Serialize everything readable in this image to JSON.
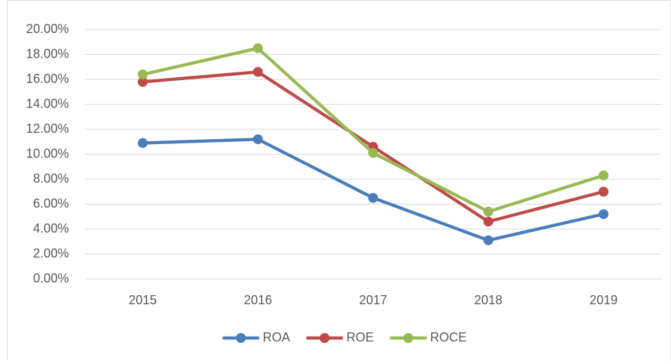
{
  "chart_data": {
    "type": "line",
    "categories": [
      "2015",
      "2016",
      "2017",
      "2018",
      "2019"
    ],
    "series": [
      {
        "name": "ROA",
        "color": "#4a7ebb",
        "values": [
          10.9,
          11.2,
          6.5,
          3.1,
          5.2
        ]
      },
      {
        "name": "ROE",
        "color": "#be4b48",
        "values": [
          15.8,
          16.6,
          10.6,
          4.6,
          7.0
        ]
      },
      {
        "name": "ROCE",
        "color": "#98b954",
        "values": [
          16.4,
          18.5,
          10.1,
          5.4,
          8.3
        ]
      }
    ],
    "ylim": [
      0,
      20
    ],
    "yticks": [
      {
        "value": 0,
        "label": "0.00%"
      },
      {
        "value": 2,
        "label": "2.00%"
      },
      {
        "value": 4,
        "label": "4.00%"
      },
      {
        "value": 6,
        "label": "6.00%"
      },
      {
        "value": 8,
        "label": "8.00%"
      },
      {
        "value": 10,
        "label": "10.00%"
      },
      {
        "value": 12,
        "label": "12.00%"
      },
      {
        "value": 14,
        "label": "14.00%"
      },
      {
        "value": 16,
        "label": "16.00%"
      },
      {
        "value": 18,
        "label": "18.00%"
      },
      {
        "value": 20,
        "label": "20.00%"
      }
    ],
    "grid": true,
    "legend": "bottom"
  }
}
